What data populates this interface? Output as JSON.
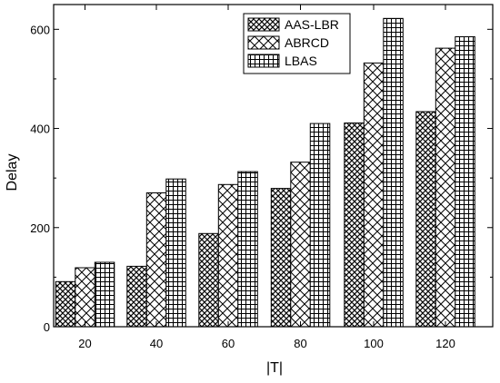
{
  "chart_data": {
    "type": "bar",
    "title": "",
    "xlabel": "|T|",
    "ylabel": "Delay",
    "categories": [
      "20",
      "40",
      "60",
      "80",
      "100",
      "120"
    ],
    "ylim": [
      0,
      650
    ],
    "yticks": [
      "0",
      "200",
      "400",
      "600"
    ],
    "grid": false,
    "legend_position": "top-center",
    "series": [
      {
        "name": "AAS-LBR",
        "pattern": "crosshatch-fine",
        "values": [
          91,
          122,
          188,
          279,
          411,
          434
        ]
      },
      {
        "name": "ABRCD",
        "pattern": "diagonal-cross",
        "values": [
          119,
          270,
          287,
          332,
          532,
          562
        ]
      },
      {
        "name": "LBAS",
        "pattern": "grid",
        "values": [
          130,
          298,
          313,
          410,
          622,
          585
        ]
      }
    ]
  }
}
